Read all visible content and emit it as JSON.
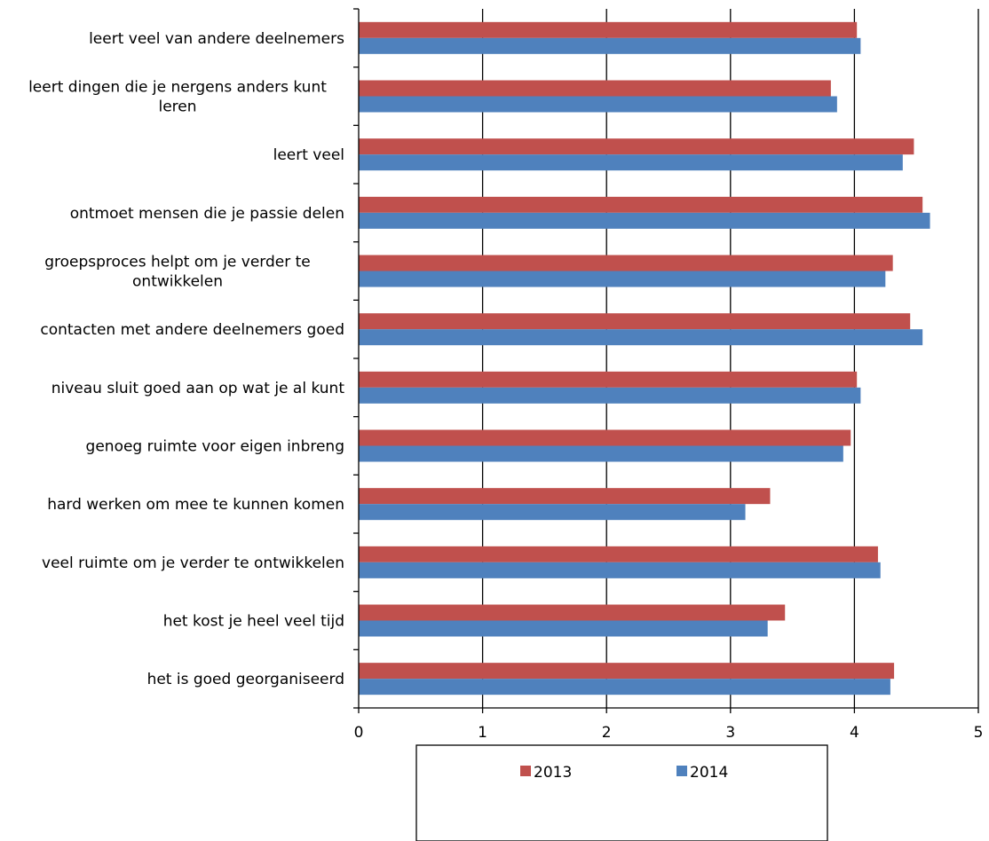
{
  "chart_data": {
    "type": "bar",
    "orientation": "horizontal",
    "categories": [
      "leert veel van andere deelnemers",
      "leert dingen die je nergens anders kunt leren",
      "leert veel",
      "ontmoet mensen die je passie delen",
      "groepsproces helpt om je verder te ontwikkelen",
      "contacten met andere deelnemers goed",
      "niveau sluit goed aan op wat je al kunt",
      "genoeg ruimte voor eigen inbreng",
      "hard werken om mee te kunnen komen",
      "veel ruimte om je verder te ontwikkelen",
      "het kost je heel veel tijd",
      "het is goed georganiseerd"
    ],
    "category_lines": [
      [
        "leert veel van andere deelnemers"
      ],
      [
        "leert dingen die je nergens anders kunt",
        "leren"
      ],
      [
        "leert veel"
      ],
      [
        "ontmoet mensen die je passie delen"
      ],
      [
        "groepsproces helpt om je verder te",
        "ontwikkelen"
      ],
      [
        "contacten met andere deelnemers goed"
      ],
      [
        "niveau sluit goed aan op wat je al kunt"
      ],
      [
        "genoeg ruimte voor eigen inbreng"
      ],
      [
        "hard werken om mee te kunnen komen"
      ],
      [
        "veel ruimte om je verder te ontwikkelen"
      ],
      [
        "het kost je heel veel tijd"
      ],
      [
        "het is goed georganiseerd"
      ]
    ],
    "series": [
      {
        "name": "2013",
        "color": "#c0504d",
        "values": [
          4.02,
          3.81,
          4.48,
          4.55,
          4.31,
          4.45,
          4.02,
          3.97,
          3.32,
          4.19,
          3.44,
          4.32
        ]
      },
      {
        "name": "2014",
        "color": "#4f81bd",
        "values": [
          4.05,
          3.86,
          4.39,
          4.61,
          4.25,
          4.55,
          4.05,
          3.91,
          3.12,
          4.21,
          3.3,
          4.29
        ]
      }
    ],
    "xlim": [
      0,
      5
    ],
    "x_ticks": [
      0,
      1,
      2,
      3,
      4,
      5
    ],
    "grid": "vertical major gridlines",
    "legend_position": "bottom",
    "title": "",
    "xlabel": "",
    "ylabel": ""
  }
}
